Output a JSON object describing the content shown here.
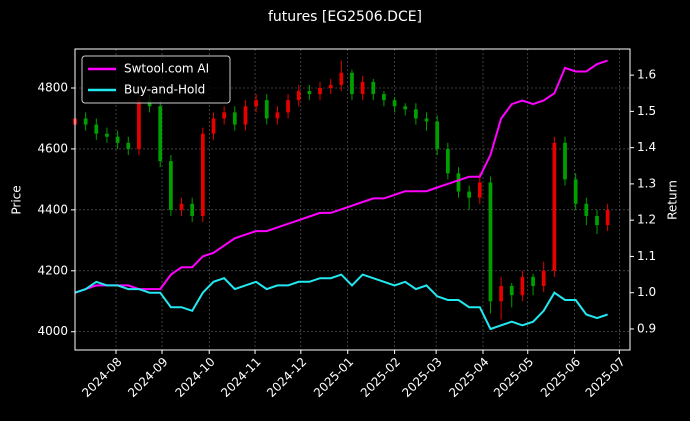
{
  "chart_data": {
    "type": "candlestick",
    "title": "futures [EG2506.DCE]",
    "ylabel": "Price",
    "y2label": "Return",
    "ylim": [
      3940,
      4928
    ],
    "yticks": [
      4000,
      4200,
      4400,
      4600,
      4800
    ],
    "y2lim": [
      0.842,
      1.672
    ],
    "y2ticks": [
      0.9,
      {
        "value": 1,
        "label": "1.0"
      },
      1.1,
      1.2,
      1.3,
      1.4,
      1.5,
      1.6
    ],
    "xlim": [
      0,
      52.1
    ],
    "xticks": [
      {
        "value": 3.85,
        "label": "2024-08"
      },
      {
        "value": 8.17,
        "label": "2024-09"
      },
      {
        "value": 12.6,
        "label": "2024-10"
      },
      {
        "value": 16.9,
        "label": "2024-11"
      },
      {
        "value": 21.2,
        "label": "2024-12"
      },
      {
        "value": 25.6,
        "label": "2025-01"
      },
      {
        "value": 30.0,
        "label": "2025-02"
      },
      {
        "value": 33.9,
        "label": "2025-03"
      },
      {
        "value": 38.3,
        "label": "2025-04"
      },
      {
        "value": 42.5,
        "label": "2025-05"
      },
      {
        "value": 46.9,
        "label": "2025-06"
      },
      {
        "value": 51.1,
        "label": "2025-07"
      }
    ],
    "grid": true,
    "legend": "upper left",
    "candles": {
      "up_color": "#e60000",
      "down_color": "#00a000",
      "open": [
        4680,
        4700,
        4680,
        4650,
        4640,
        4620,
        4600,
        4760,
        4740,
        4560,
        4400,
        4420,
        4380,
        4650,
        4700,
        4720,
        4680,
        4740,
        4760,
        4700,
        4720,
        4760,
        4790,
        4780,
        4800,
        4810,
        4850,
        4780,
        4820,
        4780,
        4760,
        4740,
        4730,
        4700,
        4690,
        4600,
        4520,
        4460,
        4440,
        4490,
        4100,
        4150,
        4120,
        4180,
        4150,
        4200,
        4620,
        4500,
        4420,
        4380,
        4350
      ],
      "high": [
        4720,
        4720,
        4700,
        4670,
        4660,
        4640,
        4780,
        4780,
        4760,
        4580,
        4440,
        4440,
        4670,
        4720,
        4740,
        4740,
        4760,
        4780,
        4780,
        4740,
        4780,
        4810,
        4810,
        4820,
        4830,
        4890,
        4860,
        4840,
        4830,
        4790,
        4770,
        4750,
        4750,
        4720,
        4710,
        4620,
        4540,
        4480,
        4520,
        4510,
        4180,
        4160,
        4200,
        4190,
        4230,
        4640,
        4640,
        4520,
        4440,
        4400,
        4420
      ],
      "low": [
        4660,
        4660,
        4630,
        4620,
        4600,
        4580,
        4580,
        4720,
        4540,
        4380,
        4380,
        4360,
        4360,
        4630,
        4680,
        4660,
        4660,
        4720,
        4680,
        4680,
        4700,
        4740,
        4760,
        4760,
        4780,
        4790,
        4760,
        4760,
        4760,
        4740,
        4720,
        4710,
        4680,
        4660,
        4580,
        4500,
        4440,
        4400,
        4420,
        4060,
        4040,
        4080,
        4100,
        4120,
        4130,
        4180,
        4480,
        4400,
        4350,
        4320,
        4330
      ],
      "close": [
        4700,
        4680,
        4650,
        4640,
        4620,
        4600,
        4760,
        4740,
        4560,
        4400,
        4420,
        4380,
        4650,
        4700,
        4720,
        4680,
        4740,
        4760,
        4700,
        4720,
        4760,
        4790,
        4780,
        4800,
        4810,
        4850,
        4780,
        4820,
        4780,
        4760,
        4740,
        4730,
        4700,
        4690,
        4600,
        4520,
        4460,
        4440,
        4490,
        4100,
        4150,
        4120,
        4180,
        4150,
        4200,
        4620,
        4500,
        4420,
        4380,
        4350,
        4400
      ]
    },
    "series": [
      {
        "name": "Swtool.com AI",
        "color": "#ff00ff",
        "axis": "y2",
        "values": [
          1.0,
          1.01,
          1.02,
          1.02,
          1.02,
          1.02,
          1.01,
          1.01,
          1.01,
          1.05,
          1.07,
          1.07,
          1.1,
          1.11,
          1.13,
          1.15,
          1.16,
          1.17,
          1.17,
          1.18,
          1.19,
          1.2,
          1.21,
          1.22,
          1.22,
          1.23,
          1.24,
          1.25,
          1.26,
          1.26,
          1.27,
          1.28,
          1.28,
          1.28,
          1.29,
          1.3,
          1.31,
          1.32,
          1.32,
          1.38,
          1.48,
          1.52,
          1.53,
          1.52,
          1.53,
          1.55,
          1.62,
          1.61,
          1.61,
          1.63,
          1.64
        ]
      },
      {
        "name": "Buy-and-Hold",
        "color": "#22e8f0",
        "axis": "y2",
        "values": [
          1.0,
          1.01,
          1.03,
          1.02,
          1.02,
          1.01,
          1.01,
          1.0,
          1.0,
          0.96,
          0.96,
          0.95,
          1.0,
          1.03,
          1.04,
          1.01,
          1.02,
          1.03,
          1.01,
          1.02,
          1.02,
          1.03,
          1.03,
          1.04,
          1.04,
          1.05,
          1.02,
          1.05,
          1.04,
          1.03,
          1.02,
          1.03,
          1.01,
          1.02,
          0.99,
          0.98,
          0.98,
          0.96,
          0.96,
          0.9,
          0.91,
          0.92,
          0.91,
          0.92,
          0.95,
          1.0,
          0.98,
          0.98,
          0.94,
          0.93,
          0.94
        ]
      }
    ]
  }
}
